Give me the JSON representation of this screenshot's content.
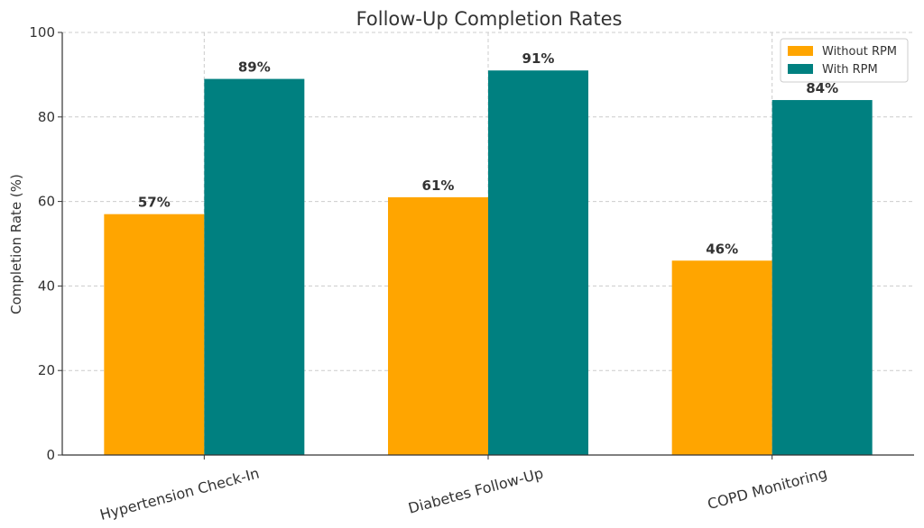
{
  "chart_data": {
    "type": "bar",
    "title": "Follow-Up Completion Rates",
    "xlabel": "",
    "ylabel": "Completion Rate (%)",
    "categories": [
      "Hypertension Check-In",
      "Diabetes Follow-Up",
      "COPD Monitoring"
    ],
    "series": [
      {
        "name": "Without RPM",
        "values": [
          57,
          61,
          46
        ],
        "color": "#FFA500",
        "labels": [
          "57%",
          "61%",
          "46%"
        ]
      },
      {
        "name": "With RPM",
        "values": [
          89,
          91,
          84
        ],
        "color": "#008080",
        "labels": [
          "89%",
          "91%",
          "84%"
        ]
      }
    ],
    "ylim": [
      0,
      100
    ],
    "yticks": [
      0,
      20,
      40,
      60,
      80,
      100
    ],
    "grid": true,
    "legend_position": "top-right"
  }
}
